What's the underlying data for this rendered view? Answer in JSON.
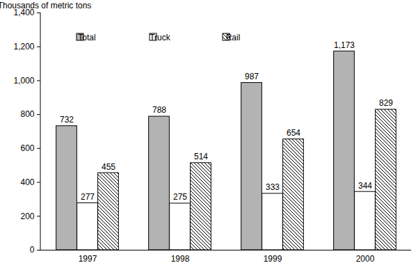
{
  "chart_data": {
    "type": "bar",
    "y_label": "Thousands of metric tons",
    "categories": [
      "1997",
      "1998",
      "1999",
      "2000"
    ],
    "series": [
      {
        "name": "Total",
        "color": "#b3b3b3",
        "values": [
          732,
          788,
          987,
          1173
        ],
        "value_labels": [
          "732",
          "788",
          "987",
          "1,173"
        ]
      },
      {
        "name": "Truck",
        "color": "#ffffff",
        "values": [
          277,
          275,
          333,
          344
        ]
      },
      {
        "name": "Rail",
        "color": "#000000",
        "marker": "hatch",
        "values": [
          455,
          514,
          654,
          829
        ]
      }
    ],
    "ylim": [
      0,
      1400
    ],
    "yticks": [
      0,
      200,
      400,
      600,
      800,
      {
        "value": 1000,
        "label": "1,000"
      },
      {
        "value": 1200,
        "label": "1,200"
      },
      {
        "value": 1400,
        "label": "1,400"
      }
    ],
    "grid": false,
    "legend": "top",
    "data_labels": true
  }
}
